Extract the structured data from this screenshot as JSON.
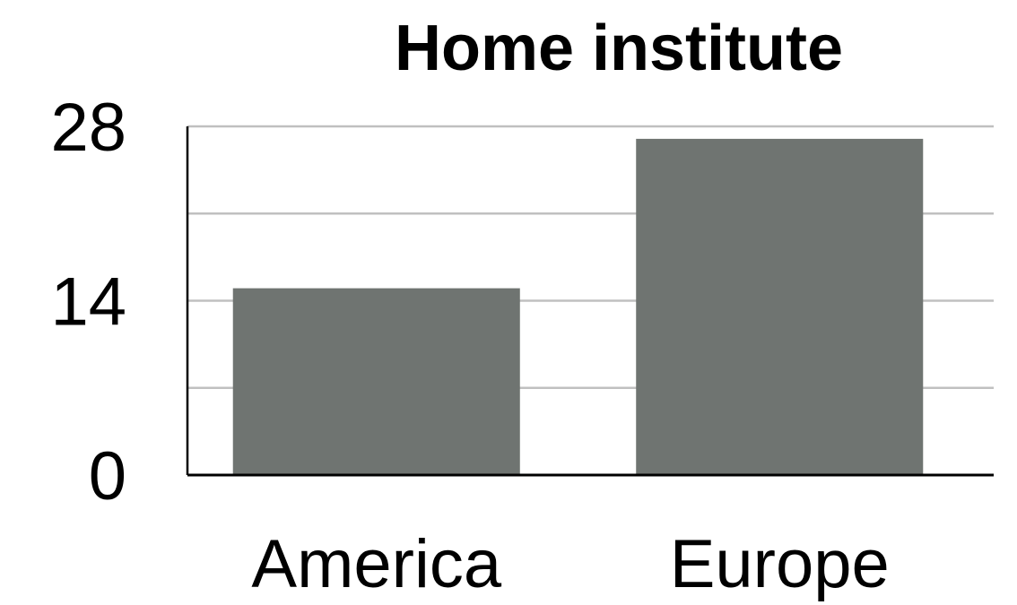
{
  "chart_data": {
    "type": "bar",
    "title": "Home institute",
    "xlabel": "",
    "ylabel": "",
    "categories": [
      "America",
      "Europe"
    ],
    "values": [
      15,
      27
    ],
    "ylim": [
      0,
      28
    ],
    "yticks": [
      0,
      14,
      28
    ],
    "minor_gridlines": [
      7,
      21
    ],
    "grid": true,
    "legend": "none",
    "colors": {
      "bar": "#6f7471",
      "grid": "#c0c0c0",
      "axis": "#000000",
      "text": "#000000"
    }
  }
}
